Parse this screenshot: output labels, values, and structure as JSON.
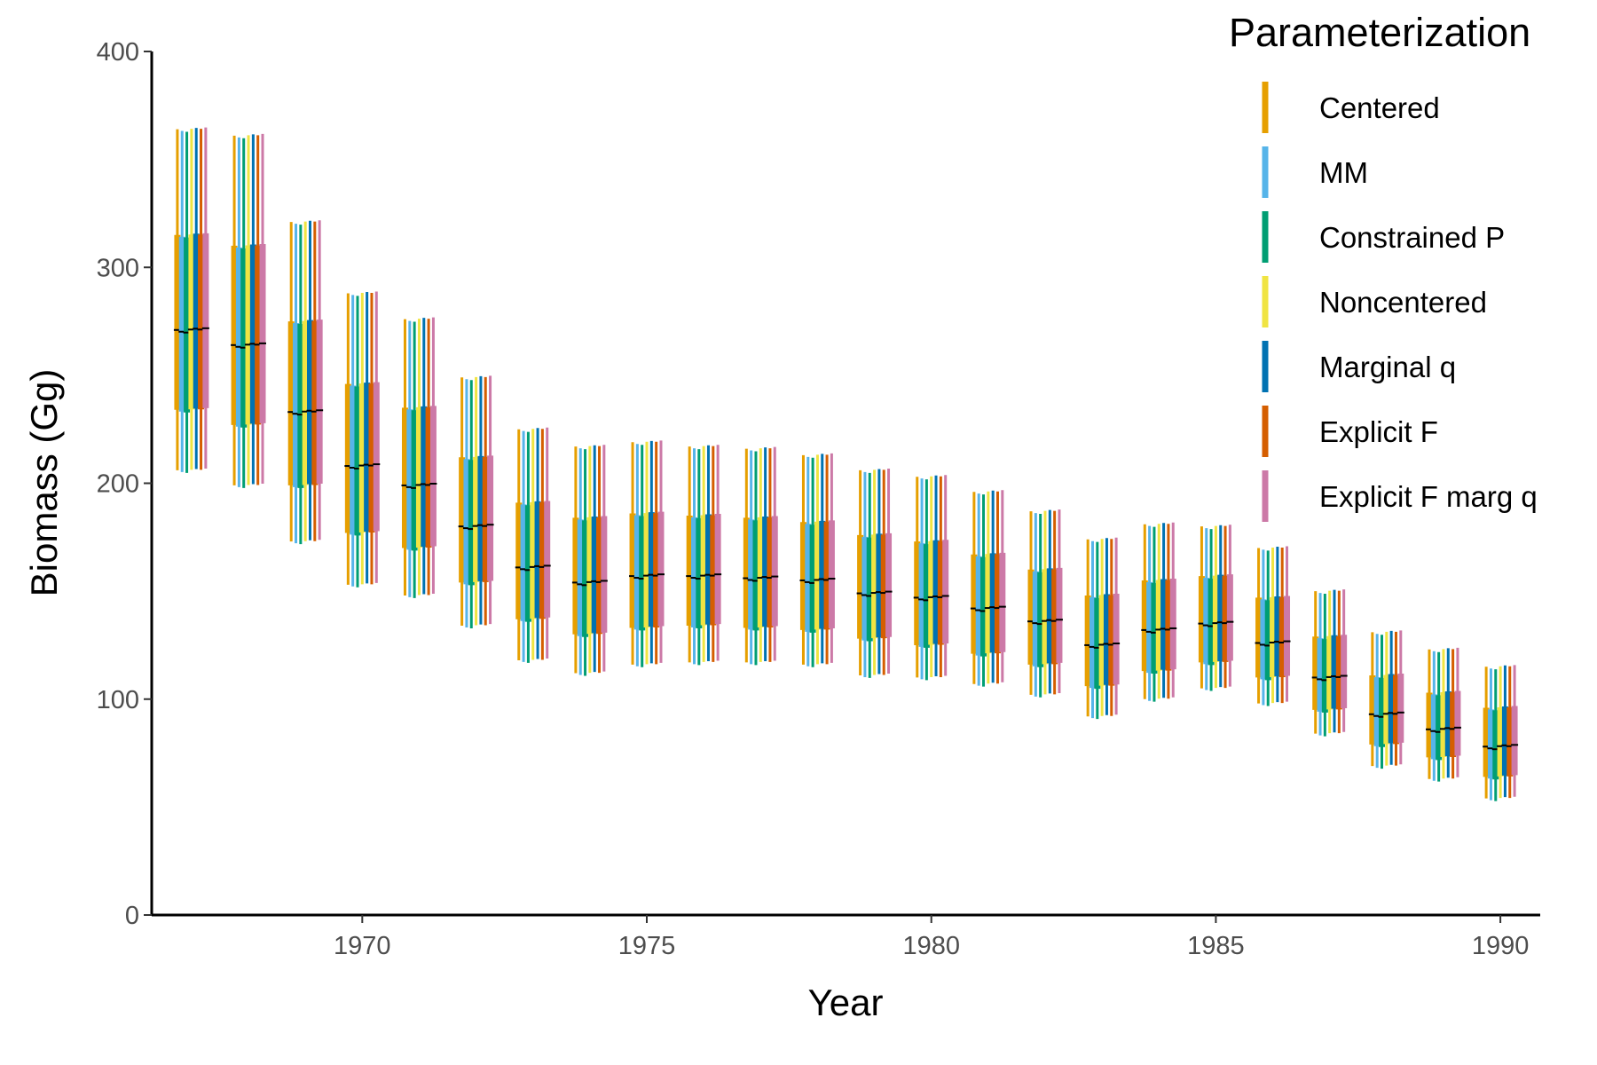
{
  "chart_data": {
    "type": "interval",
    "title": "",
    "xlabel": "Year",
    "ylabel": "Biomass (Gg)",
    "xlim": [
      1966.3,
      1990.7
    ],
    "ylim": [
      0,
      400
    ],
    "x_ticks": [
      1970,
      1975,
      1980,
      1985,
      1990
    ],
    "y_ticks": [
      0,
      100,
      200,
      300,
      400
    ],
    "grid": false,
    "legend": {
      "title": "Parameterization",
      "position": "right-top"
    },
    "series": [
      {
        "name": "Centered",
        "color": "#E69F00"
      },
      {
        "name": "MM",
        "color": "#56B4E9"
      },
      {
        "name": "Constrained P",
        "color": "#009E73"
      },
      {
        "name": "Noncentered",
        "color": "#F0E442"
      },
      {
        "name": "Marginal q",
        "color": "#0072B2"
      },
      {
        "name": "Explicit F",
        "color": "#D55E00"
      },
      {
        "name": "Explicit F marg q",
        "color": "#CC79A7"
      }
    ],
    "years": [
      1967,
      1968,
      1969,
      1970,
      1971,
      1972,
      1973,
      1974,
      1975,
      1976,
      1977,
      1978,
      1979,
      1980,
      1981,
      1982,
      1983,
      1984,
      1985,
      1986,
      1987,
      1988,
      1989,
      1990
    ],
    "median": [
      271,
      264,
      233,
      208,
      199,
      180,
      161,
      154,
      157,
      157,
      156,
      155,
      149,
      147,
      142,
      136,
      125,
      132,
      135,
      126,
      110,
      93,
      86,
      78
    ],
    "q25": [
      234,
      227,
      199,
      177,
      170,
      154,
      137,
      130,
      133,
      134,
      133,
      132,
      128,
      125,
      121,
      116,
      106,
      113,
      117,
      110,
      95,
      79,
      73,
      64
    ],
    "q75": [
      315,
      310,
      275,
      246,
      235,
      212,
      191,
      184,
      186,
      185,
      184,
      182,
      176,
      173,
      167,
      160,
      148,
      155,
      157,
      147,
      129,
      111,
      103,
      96
    ],
    "lower": [
      206,
      199,
      173,
      153,
      148,
      134,
      118,
      112,
      116,
      117,
      117,
      116,
      111,
      110,
      107,
      102,
      92,
      100,
      105,
      98,
      84,
      69,
      63,
      54
    ],
    "upper": [
      364,
      361,
      321,
      288,
      276,
      249,
      225,
      217,
      219,
      217,
      216,
      213,
      206,
      203,
      196,
      187,
      174,
      181,
      180,
      170,
      150,
      131,
      123,
      115
    ],
    "series_offsets": [
      0.0,
      -0.8,
      -1.2,
      0.2,
      0.6,
      0.2,
      0.8
    ]
  }
}
